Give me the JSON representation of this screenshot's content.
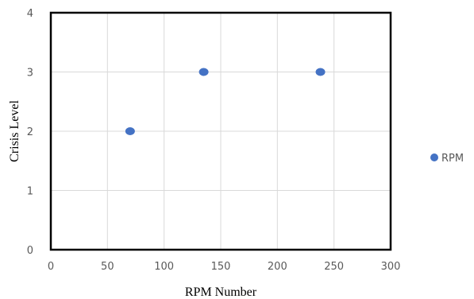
{
  "chart_data": {
    "type": "scatter",
    "title": "",
    "xlabel": "RPM Number",
    "ylabel": "Crisis Level",
    "xlim": [
      0,
      300
    ],
    "ylim": [
      0,
      4
    ],
    "x_ticks": [
      0,
      50,
      100,
      150,
      200,
      250,
      300
    ],
    "y_ticks": [
      0,
      1,
      2,
      3,
      4
    ],
    "grid": true,
    "legend_position": "right",
    "series": [
      {
        "name": "RPM",
        "color": "#4472C4",
        "points": [
          {
            "x": 70,
            "y": 2
          },
          {
            "x": 135,
            "y": 3
          },
          {
            "x": 238,
            "y": 3
          }
        ]
      }
    ]
  }
}
